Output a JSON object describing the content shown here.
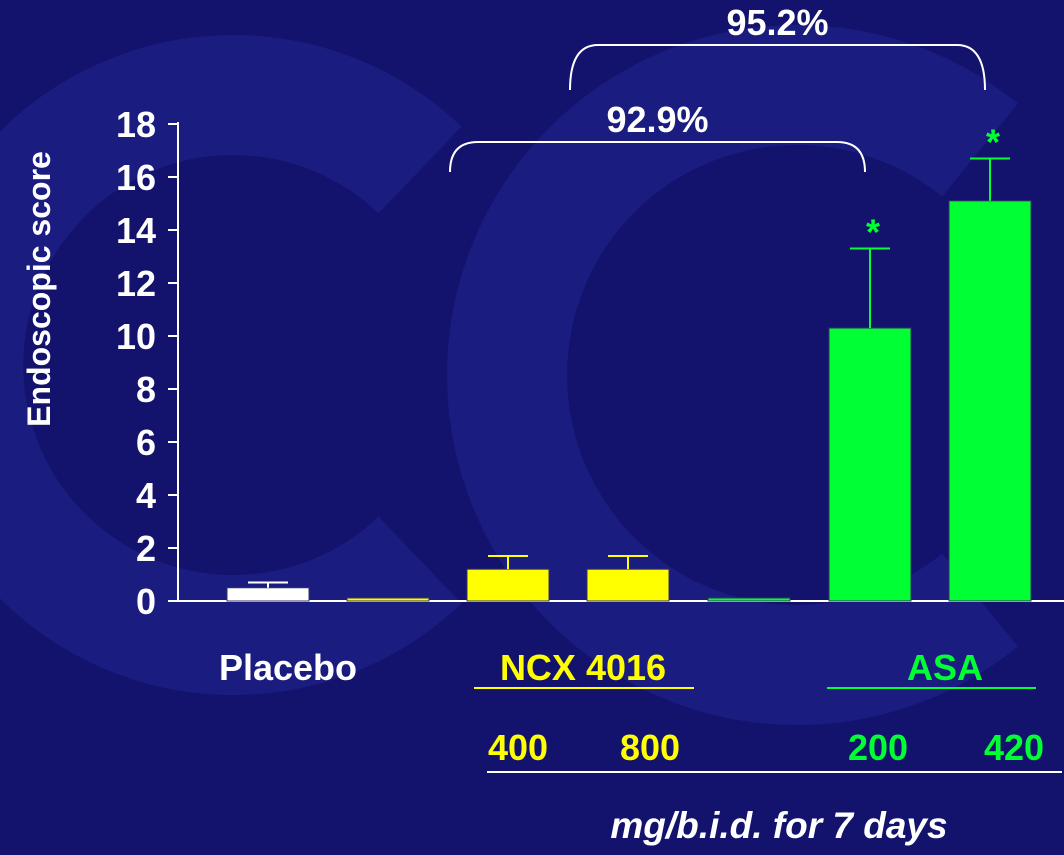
{
  "colors": {
    "background": "#13136e",
    "axis": "#ffffff",
    "placebo": "#ffffff",
    "ncx": "#ffff00",
    "asa": "#00ff33"
  },
  "chart_data": {
    "type": "bar",
    "ylabel": "Endoscopic score",
    "ylim": [
      0,
      18
    ],
    "yticks": [
      0,
      2,
      4,
      6,
      8,
      10,
      12,
      14,
      16,
      18
    ],
    "bars": [
      {
        "group": "Placebo",
        "dose": "",
        "value": 0.5,
        "error": 0.2,
        "color": "#ffffff",
        "significant": false
      },
      {
        "group": "NCX 4016",
        "dose": "",
        "value": 0.0,
        "error": 0,
        "color": "#ffff00",
        "significant": false
      },
      {
        "group": "NCX 4016",
        "dose": "400",
        "value": 1.2,
        "error": 0.5,
        "color": "#ffff00",
        "significant": false
      },
      {
        "group": "NCX 4016",
        "dose": "800",
        "value": 1.2,
        "error": 0.5,
        "color": "#ffff00",
        "significant": false
      },
      {
        "group": "ASA",
        "dose": "",
        "value": 0.0,
        "error": 0,
        "color": "#00ff33",
        "significant": false
      },
      {
        "group": "ASA",
        "dose": "200",
        "value": 10.3,
        "error": 3.0,
        "color": "#00ff33",
        "significant": true
      },
      {
        "group": "ASA",
        "dose": "420",
        "value": 15.1,
        "error": 1.6,
        "color": "#00ff33",
        "significant": true
      }
    ],
    "significance_marker": "*",
    "brackets": [
      {
        "label": "92.9%",
        "from_bar": 2,
        "to_bar": 5
      },
      {
        "label": "95.2%",
        "from_bar": 3,
        "to_bar": 6
      }
    ],
    "group_labels": [
      {
        "text": "Placebo",
        "color": "#ffffff",
        "underline": false
      },
      {
        "text": "NCX 4016",
        "color": "#ffff00",
        "underline": true
      },
      {
        "text": "ASA",
        "color": "#00ff33",
        "underline": true
      }
    ],
    "dose_labels": [
      {
        "text": "400",
        "color": "#ffff00"
      },
      {
        "text": "800",
        "color": "#ffff00"
      },
      {
        "text": "200",
        "color": "#00ff33"
      },
      {
        "text": "420",
        "color": "#00ff33"
      }
    ],
    "footnote": "mg/b.i.d. for 7 days"
  }
}
